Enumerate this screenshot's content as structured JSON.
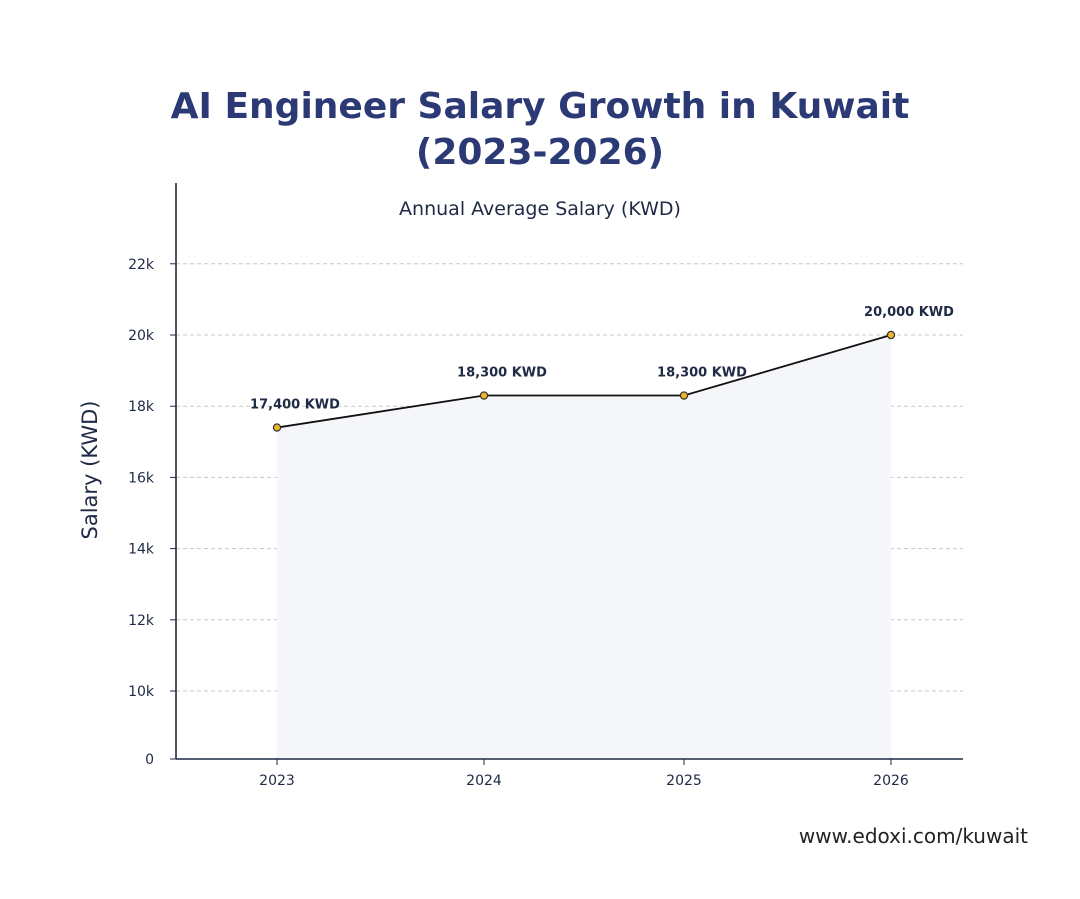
{
  "title_line1": "AI Engineer Salary Growth in Kuwait",
  "title_line2": "(2023-2026)",
  "watermark": "www.edoxi.com/kuwait",
  "chart_data": {
    "type": "area",
    "title": "AI Engineer Salary Growth in Kuwait (2023-2026)",
    "subtitle": "Annual Average Salary (KWD)",
    "xlabel": "",
    "ylabel": "Salary (KWD)",
    "categories": [
      "2023",
      "2024",
      "2025",
      "2026"
    ],
    "series": [
      {
        "values": [
          17400,
          18300,
          18300,
          20000
        ]
      }
    ],
    "data_labels": [
      "17,400 KWD",
      "18,300 KWD",
      "18,300 KWD",
      "20,000 KWD"
    ],
    "yticks": [
      {
        "value": 0,
        "label": "0"
      },
      {
        "value": 10000,
        "label": "10k"
      },
      {
        "value": 12000,
        "label": "12k"
      },
      {
        "value": 14000,
        "label": "14k"
      },
      {
        "value": 16000,
        "label": "16k"
      },
      {
        "value": 18000,
        "label": "18k"
      },
      {
        "value": 20000,
        "label": "20k"
      },
      {
        "value": 22000,
        "label": "22k"
      }
    ],
    "ylim": [
      0,
      23500
    ],
    "y_axis_break": "0 to 10k compressed",
    "grid": true,
    "colors": {
      "line": "#111111",
      "marker_fill": "#f0b42b",
      "marker_stroke": "#333333",
      "area_fill": "#f5f6f9",
      "grid": "#c8c8c8",
      "axis": "#1f2a44",
      "title": "#2b3a75"
    }
  }
}
